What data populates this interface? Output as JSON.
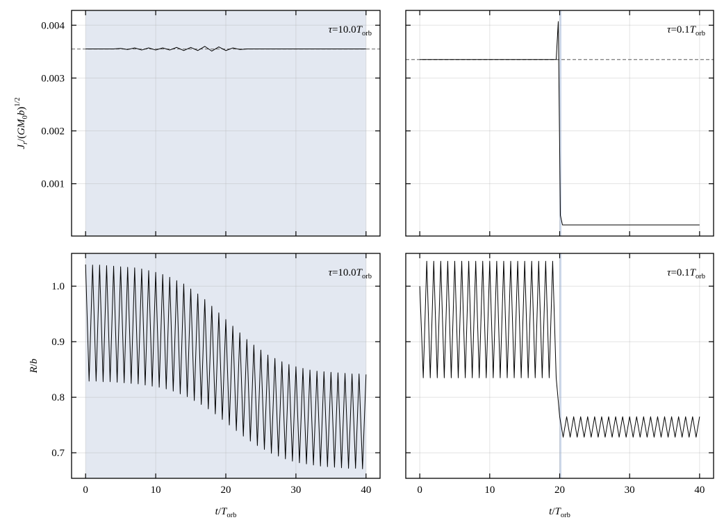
{
  "chart_data": [
    {
      "type": "line",
      "annotation": [
        {
          "text": "τ",
          "italic": true
        },
        {
          "text": "=10.0"
        },
        {
          "text": "T",
          "italic": true
        },
        {
          "text": "orb",
          "sub": true
        }
      ],
      "ylabel": [
        {
          "text": "J",
          "italic": true
        },
        {
          "text": "r",
          "italic": true,
          "sub": true
        },
        {
          "text": "/("
        },
        {
          "text": "GM",
          "italic": true
        },
        {
          "text": "0",
          "sub": true
        },
        {
          "text": "b",
          "italic": true
        },
        {
          "text": ")"
        },
        {
          "text": "1/2",
          "sup": true
        }
      ],
      "xlim": [
        -2,
        42
      ],
      "ylim": [
        1e-05,
        0.00428
      ],
      "xticks": [
        0,
        10,
        20,
        30,
        40
      ],
      "yticks": [
        0.001,
        0.002,
        0.003,
        0.004
      ],
      "xtick_labels": false,
      "ytick_labels": true,
      "grid": true,
      "span": [
        0,
        40
      ],
      "span_color": "#e3e8f1",
      "hline": 0.00355,
      "x": [
        0,
        1,
        2,
        3,
        4,
        5,
        6,
        7,
        8,
        9,
        10,
        11,
        12,
        13,
        14,
        15,
        16,
        17,
        18,
        19,
        20,
        21,
        22,
        23,
        24,
        25,
        26,
        27,
        28,
        29,
        30,
        31,
        32,
        33,
        34,
        35,
        36,
        37,
        38,
        39,
        40
      ],
      "series": [
        {
          "color": "#000000",
          "values": [
            0.00355,
            0.00355,
            0.00355,
            0.00355,
            0.00355,
            0.00356,
            0.00354,
            0.00357,
            0.00353,
            0.00357,
            0.00353,
            0.00357,
            0.00353,
            0.00358,
            0.00352,
            0.00358,
            0.00352,
            0.0036,
            0.00351,
            0.00359,
            0.00352,
            0.00357,
            0.00354,
            0.00355,
            0.00355,
            0.00355,
            0.00355,
            0.00355,
            0.00355,
            0.00355,
            0.00355,
            0.00355,
            0.00355,
            0.00355,
            0.00355,
            0.00355,
            0.00355,
            0.00355,
            0.00355,
            0.00355,
            0.00355
          ]
        }
      ]
    },
    {
      "type": "line",
      "annotation": [
        {
          "text": "τ",
          "italic": true
        },
        {
          "text": "=0.1"
        },
        {
          "text": "T",
          "italic": true
        },
        {
          "text": "orb",
          "sub": true
        }
      ],
      "xlim": [
        -2,
        42
      ],
      "ylim": [
        1e-05,
        0.00428
      ],
      "xticks": [
        0,
        10,
        20,
        30,
        40
      ],
      "yticks": [
        0.001,
        0.002,
        0.003,
        0.004
      ],
      "xtick_labels": false,
      "ytick_labels": false,
      "grid": true,
      "span": [
        19.95,
        20.25
      ],
      "span_color": "#cdd8ea",
      "hline": 0.00335,
      "x": [
        0,
        19.5,
        19.8,
        20.1,
        20.4,
        40
      ],
      "series": [
        {
          "color": "#000000",
          "values": [
            0.00335,
            0.00335,
            0.00407,
            0.0004,
            0.00022,
            0.00022
          ]
        }
      ]
    },
    {
      "type": "line",
      "annotation": [
        {
          "text": "τ",
          "italic": true
        },
        {
          "text": "=10.0"
        },
        {
          "text": "T",
          "italic": true
        },
        {
          "text": "orb",
          "sub": true
        }
      ],
      "ylabel": [
        {
          "text": "R",
          "italic": true
        },
        {
          "text": "/"
        },
        {
          "text": "b",
          "italic": true
        }
      ],
      "xlabel": [
        {
          "text": "t",
          "italic": true
        },
        {
          "text": "/"
        },
        {
          "text": "T",
          "italic": true
        },
        {
          "text": "orb",
          "sub": true
        }
      ],
      "xlim": [
        -2,
        42
      ],
      "ylim": [
        0.654,
        1.059
      ],
      "xticks": [
        0,
        10,
        20,
        30,
        40
      ],
      "yticks": [
        0.7,
        0.8,
        0.9,
        {
          "value": 1,
          "label": "1.0"
        }
      ],
      "xtick_labels": true,
      "ytick_labels": true,
      "grid": true,
      "span": [
        0,
        40
      ],
      "span_color": "#e3e8f1",
      "x": [
        0,
        0.5,
        1,
        1.5,
        2,
        2.5,
        3,
        3.5,
        4,
        4.5,
        5,
        5.5,
        6,
        6.5,
        7,
        7.5,
        8,
        8.5,
        9,
        9.5,
        10,
        10.5,
        11,
        11.5,
        12,
        12.5,
        13,
        13.5,
        14,
        14.5,
        15,
        15.5,
        16,
        16.5,
        17,
        17.5,
        18,
        18.5,
        19,
        19.5,
        20,
        20.5,
        21,
        21.5,
        22,
        22.5,
        23,
        23.5,
        24,
        24.5,
        25,
        25.5,
        26,
        26.5,
        27,
        27.5,
        28,
        28.5,
        29,
        29.5,
        30,
        30.5,
        31,
        31.5,
        32,
        32.5,
        33,
        33.5,
        34,
        34.5,
        35,
        35.5,
        36,
        36.5,
        37,
        37.5,
        38,
        38.5,
        39,
        39.5,
        40
      ],
      "series": [
        {
          "color": "#000000",
          "values": [
            1.039,
            0.829,
            1.038,
            0.829,
            1.038,
            0.828,
            1.037,
            0.828,
            1.036,
            0.827,
            1.035,
            0.826,
            1.034,
            0.825,
            1.033,
            0.824,
            1.031,
            0.822,
            1.028,
            0.82,
            1.025,
            0.818,
            1.021,
            0.815,
            1.016,
            0.811,
            1.01,
            0.806,
            1.004,
            0.801,
            0.995,
            0.794,
            0.986,
            0.787,
            0.976,
            0.779,
            0.964,
            0.77,
            0.952,
            0.76,
            0.94,
            0.75,
            0.928,
            0.74,
            0.916,
            0.73,
            0.904,
            0.721,
            0.894,
            0.713,
            0.885,
            0.706,
            0.876,
            0.699,
            0.87,
            0.694,
            0.864,
            0.689,
            0.859,
            0.685,
            0.855,
            0.682,
            0.852,
            0.68,
            0.849,
            0.678,
            0.847,
            0.676,
            0.846,
            0.675,
            0.845,
            0.674,
            0.844,
            0.673,
            0.843,
            0.672,
            0.842,
            0.672,
            0.842,
            0.671,
            0.841
          ]
        }
      ]
    },
    {
      "type": "line",
      "annotation": [
        {
          "text": "τ",
          "italic": true
        },
        {
          "text": "=0.1"
        },
        {
          "text": "T",
          "italic": true
        },
        {
          "text": "orb",
          "sub": true
        }
      ],
      "xlabel": [
        {
          "text": "t",
          "italic": true
        },
        {
          "text": "/"
        },
        {
          "text": "T",
          "italic": true
        },
        {
          "text": "orb",
          "sub": true
        }
      ],
      "xlim": [
        -2,
        42
      ],
      "ylim": [
        0.654,
        1.059
      ],
      "xticks": [
        0,
        10,
        20,
        30,
        40
      ],
      "yticks": [
        0.7,
        0.8,
        0.9,
        {
          "value": 1,
          "label": "1.0"
        }
      ],
      "xtick_labels": true,
      "ytick_labels": false,
      "grid": true,
      "span": [
        19.95,
        20.25
      ],
      "span_color": "#cdd8ea",
      "x": [
        0,
        0.5,
        1,
        1.5,
        2,
        2.5,
        3,
        3.5,
        4,
        4.5,
        5,
        5.5,
        6,
        6.5,
        7,
        7.5,
        8,
        8.5,
        9,
        9.5,
        10,
        10.5,
        11,
        11.5,
        12,
        12.5,
        13,
        13.5,
        14,
        14.5,
        15,
        15.5,
        16,
        16.5,
        17,
        17.5,
        18,
        18.5,
        19,
        19.5,
        20,
        20.5,
        21,
        21.5,
        22,
        22.5,
        23,
        23.5,
        24,
        24.5,
        25,
        25.5,
        26,
        26.5,
        27,
        27.5,
        28,
        28.5,
        29,
        29.5,
        30,
        30.5,
        31,
        31.5,
        32,
        32.5,
        33,
        33.5,
        34,
        34.5,
        35,
        35.5,
        36,
        36.5,
        37,
        37.5,
        38,
        38.5,
        39,
        39.5,
        40
      ],
      "series": [
        {
          "color": "#000000",
          "values": [
            1.0,
            0.835,
            1.045,
            0.835,
            1.045,
            0.835,
            1.045,
            0.835,
            1.045,
            0.835,
            1.045,
            0.835,
            1.045,
            0.835,
            1.045,
            0.835,
            1.045,
            0.835,
            1.045,
            0.835,
            1.045,
            0.835,
            1.045,
            0.835,
            1.045,
            0.835,
            1.045,
            0.835,
            1.045,
            0.835,
            1.045,
            0.835,
            1.045,
            0.835,
            1.045,
            0.835,
            1.045,
            0.835,
            1.045,
            0.835,
            0.765,
            0.728,
            0.765,
            0.728,
            0.765,
            0.728,
            0.765,
            0.728,
            0.765,
            0.728,
            0.765,
            0.728,
            0.765,
            0.728,
            0.765,
            0.728,
            0.765,
            0.728,
            0.765,
            0.728,
            0.765,
            0.728,
            0.765,
            0.728,
            0.765,
            0.728,
            0.765,
            0.728,
            0.765,
            0.728,
            0.765,
            0.728,
            0.765,
            0.728,
            0.765,
            0.728,
            0.765,
            0.728,
            0.765,
            0.728,
            0.765
          ]
        }
      ]
    }
  ]
}
